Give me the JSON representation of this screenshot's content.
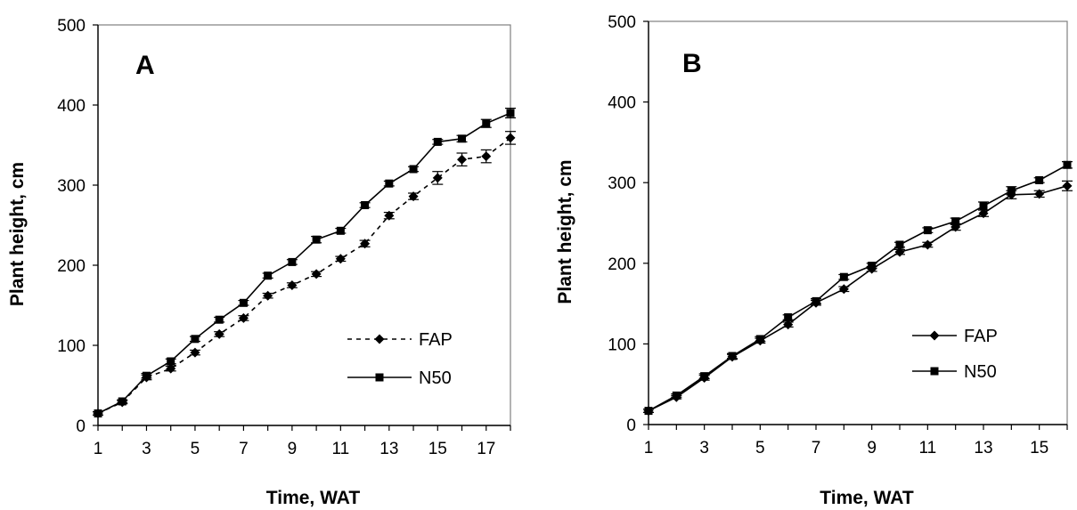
{
  "chart_data": [
    {
      "type": "line",
      "panel_label": "A",
      "xlabel": "Time, WAT",
      "ylabel": "Plant height, cm",
      "xlim": [
        1,
        18
      ],
      "ylim": [
        0,
        500
      ],
      "x_ticks": [
        "1",
        "3",
        "5",
        "7",
        "9",
        "11",
        "13",
        "15",
        "17"
      ],
      "y_ticks": [
        "0",
        "100",
        "200",
        "300",
        "400",
        "500"
      ],
      "grid": false,
      "legend_position": "lower-right",
      "series": [
        {
          "name": "FAP",
          "style": "dashed",
          "marker": "diamond",
          "x": [
            1,
            2,
            3,
            4,
            5,
            6,
            7,
            8,
            9,
            10,
            11,
            12,
            13,
            14,
            15,
            16,
            17,
            18
          ],
          "values": [
            15,
            29,
            60,
            71,
            91,
            114,
            134,
            162,
            175,
            189,
            208,
            227,
            262,
            286,
            309,
            332,
            336,
            359
          ],
          "errors": [
            2,
            2,
            3,
            3,
            3,
            3,
            3,
            3,
            3,
            3,
            3,
            4,
            4,
            4,
            8,
            8,
            8,
            8
          ]
        },
        {
          "name": "N50",
          "style": "solid",
          "marker": "square",
          "x": [
            1,
            2,
            3,
            4,
            5,
            6,
            7,
            8,
            9,
            10,
            11,
            12,
            13,
            14,
            15,
            16,
            17,
            18
          ],
          "values": [
            15,
            30,
            62,
            80,
            108,
            132,
            153,
            187,
            204,
            232,
            243,
            275,
            302,
            320,
            354,
            358,
            377,
            390
          ],
          "errors": [
            2,
            2,
            3,
            3,
            3,
            3,
            3,
            3,
            3,
            4,
            3,
            3,
            3,
            3,
            3,
            4,
            5,
            6
          ]
        }
      ]
    },
    {
      "type": "line",
      "panel_label": "B",
      "xlabel": "Time, WAT",
      "ylabel": "Plant height, cm",
      "xlim": [
        1,
        16
      ],
      "ylim": [
        0,
        500
      ],
      "x_ticks": [
        "1",
        "3",
        "5",
        "7",
        "9",
        "11",
        "13",
        "15"
      ],
      "y_ticks": [
        "0",
        "100",
        "200",
        "300",
        "400",
        "500"
      ],
      "grid": false,
      "legend_position": "lower-right",
      "series": [
        {
          "name": "FAP",
          "style": "solid",
          "marker": "diamond",
          "x": [
            1,
            2,
            3,
            4,
            5,
            6,
            7,
            8,
            9,
            10,
            11,
            12,
            13,
            14,
            15,
            16
          ],
          "values": [
            17,
            34,
            58,
            84,
            104,
            124,
            151,
            168,
            193,
            214,
            223,
            245,
            262,
            285,
            286,
            296
          ],
          "errors": [
            2,
            2,
            3,
            3,
            3,
            3,
            3,
            3,
            3,
            3,
            3,
            4,
            4,
            5,
            4,
            6
          ]
        },
        {
          "name": "N50",
          "style": "solid",
          "marker": "square",
          "x": [
            1,
            2,
            3,
            4,
            5,
            6,
            7,
            8,
            9,
            10,
            11,
            12,
            13,
            14,
            15,
            16
          ],
          "values": [
            17,
            36,
            60,
            85,
            106,
            133,
            153,
            183,
            197,
            223,
            241,
            252,
            271,
            290,
            303,
            322
          ],
          "errors": [
            2,
            2,
            3,
            3,
            3,
            3,
            3,
            3,
            3,
            3,
            3,
            4,
            5,
            5,
            3,
            4
          ]
        }
      ]
    }
  ]
}
